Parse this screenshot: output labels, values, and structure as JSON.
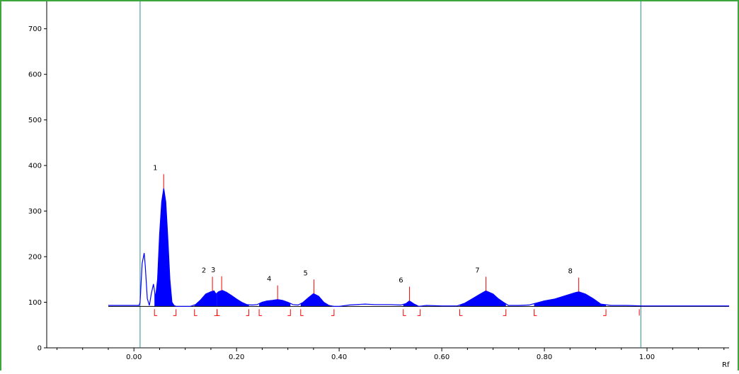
{
  "chart_data": {
    "type": "line",
    "title": "",
    "xlabel": "Rf",
    "ylabel": "",
    "xlim": [
      -0.17,
      1.16
    ],
    "ylim": [
      0,
      760
    ],
    "x_ticks": [
      0.0,
      0.2,
      0.4,
      0.6,
      0.8,
      1.0
    ],
    "x_tick_labels": [
      "0.00",
      "0.20",
      "0.40",
      "0.60",
      "0.80",
      "1.00"
    ],
    "y_ticks": [
      0,
      100,
      200,
      300,
      400,
      500,
      600,
      700
    ],
    "y_tick_labels": [
      "0",
      "100",
      "200",
      "300",
      "400",
      "500",
      "600",
      "700"
    ],
    "grid": false,
    "legend": "none",
    "baseline": 91,
    "front_lines_rf": [
      0.012,
      0.988
    ],
    "colors": {
      "trace": "#0000ff",
      "fill": "#0000ff",
      "markers": "#ff0000",
      "front_lines": "#2e8b8b",
      "axes": "#000000"
    },
    "trace": {
      "x": [
        -0.05,
        0.0,
        0.01,
        0.012,
        0.016,
        0.02,
        0.022,
        0.026,
        0.03,
        0.034,
        0.038,
        0.042,
        0.046,
        0.05,
        0.054,
        0.058,
        0.062,
        0.066,
        0.07,
        0.074,
        0.078,
        0.082,
        0.09,
        0.11,
        0.12,
        0.13,
        0.14,
        0.15,
        0.156,
        0.16,
        0.165,
        0.172,
        0.18,
        0.19,
        0.2,
        0.21,
        0.22,
        0.23,
        0.24,
        0.25,
        0.26,
        0.27,
        0.28,
        0.29,
        0.3,
        0.31,
        0.32,
        0.33,
        0.34,
        0.35,
        0.36,
        0.37,
        0.38,
        0.39,
        0.4,
        0.42,
        0.45,
        0.47,
        0.5,
        0.52,
        0.53,
        0.537,
        0.545,
        0.555,
        0.57,
        0.6,
        0.63,
        0.645,
        0.66,
        0.675,
        0.686,
        0.7,
        0.71,
        0.72,
        0.73,
        0.75,
        0.77,
        0.78,
        0.8,
        0.82,
        0.84,
        0.86,
        0.867,
        0.88,
        0.895,
        0.91,
        0.93,
        0.96,
        0.99,
        1.16
      ],
      "y": [
        93,
        93,
        93,
        100,
        185,
        208,
        180,
        108,
        93,
        120,
        140,
        110,
        150,
        250,
        320,
        350,
        320,
        240,
        150,
        100,
        93,
        91,
        91,
        91,
        95,
        105,
        118,
        123,
        125,
        118,
        123,
        126,
        122,
        115,
        107,
        100,
        95,
        94,
        95,
        100,
        103,
        104,
        106,
        104,
        100,
        95,
        94,
        100,
        110,
        119,
        113,
        100,
        93,
        91,
        91,
        94,
        96,
        95,
        95,
        94,
        97,
        103,
        97,
        91,
        93,
        92,
        92,
        98,
        108,
        118,
        125,
        118,
        108,
        100,
        93,
        93,
        94,
        97,
        103,
        107,
        114,
        121,
        123,
        118,
        108,
        96,
        93,
        93,
        92,
        92
      ]
    },
    "peaks": [
      {
        "label": "1",
        "rf": 0.058,
        "height": 350,
        "start": 0.04,
        "end": 0.082
      },
      {
        "label": "2",
        "rf": 0.153,
        "height": 125,
        "start": 0.118,
        "end": 0.162
      },
      {
        "label": "3",
        "rf": 0.171,
        "height": 126,
        "start": 0.162,
        "end": 0.224
      },
      {
        "label": "4",
        "rf": 0.28,
        "height": 106,
        "start": 0.244,
        "end": 0.305
      },
      {
        "label": "5",
        "rf": 0.351,
        "height": 119,
        "start": 0.325,
        "end": 0.39
      },
      {
        "label": "6",
        "rf": 0.537,
        "height": 103,
        "start": 0.525,
        "end": 0.558
      },
      {
        "label": "7",
        "rf": 0.686,
        "height": 125,
        "start": 0.635,
        "end": 0.725
      },
      {
        "label": "8",
        "rf": 0.867,
        "height": 123,
        "start": 0.78,
        "end": 0.92
      }
    ]
  }
}
